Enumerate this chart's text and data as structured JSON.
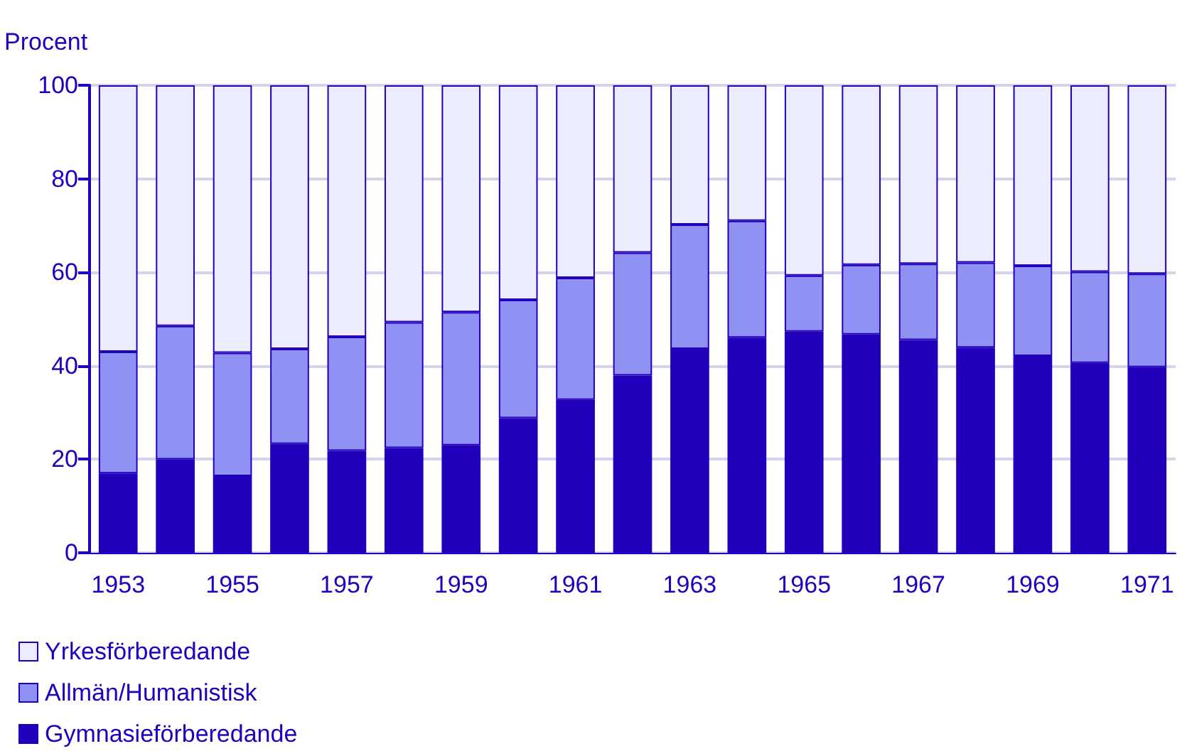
{
  "chart_data": {
    "type": "bar",
    "stacked": true,
    "ylabel": "Procent",
    "categories": [
      "1953",
      null,
      "1955",
      null,
      "1957",
      null,
      "1959",
      null,
      "1961",
      null,
      "1963",
      null,
      "1965",
      null,
      "1967",
      null,
      "1969",
      null,
      "1971"
    ],
    "series": [
      {
        "name": "Gymnasieförberedande",
        "color": "#2200bb",
        "values": [
          17,
          20,
          16.4,
          23.3,
          21.8,
          22.4,
          23,
          28.8,
          32.7,
          37.9,
          43.6,
          46,
          47.3,
          46.7,
          45.5,
          43.9,
          42.1,
          40.6,
          39.7
        ]
      },
      {
        "name": "Allmän/Humanistisk",
        "color": "#8f92f2",
        "values": [
          26,
          28.5,
          26.4,
          20.3,
          24.4,
          26.9,
          28.5,
          25.3,
          26.1,
          26.3,
          26.6,
          25,
          12,
          14.9,
          16.3,
          18.2,
          19.3,
          19.5,
          20
        ]
      },
      {
        "name": "Yrkesförberedande",
        "color": "#ececff",
        "values": [
          57,
          51.5,
          57.2,
          56.4,
          53.8,
          50.7,
          48.5,
          45.9,
          41.2,
          35.8,
          29.8,
          29,
          40.7,
          38.4,
          38.2,
          37.9,
          38.6,
          39.9,
          40.3
        ]
      }
    ],
    "ylim": [
      0,
      100
    ],
    "yticks": [
      0,
      20,
      40,
      60,
      80,
      100
    ],
    "grid": "y",
    "legend": "bottom left"
  }
}
